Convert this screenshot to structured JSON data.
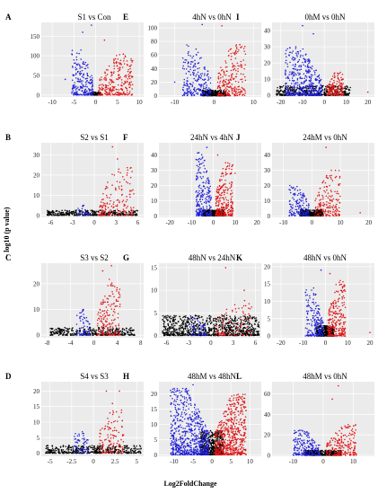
{
  "figure": {
    "ylabel": "- log10 (p value)",
    "xlabel": "Log2FoldChange",
    "colors": {
      "down": "#1f1fd6",
      "up": "#e01515",
      "ns": "#000000",
      "panel_bg": "#ebebeb",
      "grid": "#ffffff"
    }
  },
  "chart_data": [
    {
      "letter": "A",
      "title": "S1 vs Con",
      "type": "scatter",
      "xticks": [
        -10,
        -5,
        0,
        5,
        10
      ],
      "xlim": [
        -12.5,
        11
      ],
      "yticks": [
        0,
        50,
        100,
        150
      ],
      "ylim": [
        -5,
        185
      ],
      "points": {
        "down": {
          "n": 220,
          "xr": [
            -5.5,
            -0.6
          ],
          "ymax": 115
        },
        "up": {
          "n": 260,
          "xr": [
            0.6,
            8.5
          ],
          "ymax": 105
        },
        "ns": {
          "n": 120,
          "xr": [
            -1.2,
            1.2
          ],
          "ymax": 8
        }
      },
      "outliers": [
        {
          "x": -1,
          "y": 178
        },
        {
          "x": -3,
          "y": 160
        },
        {
          "x": 2,
          "y": 140
        },
        {
          "x": -7,
          "y": 40
        },
        {
          "x": 8,
          "y": 25
        }
      ]
    },
    {
      "letter": "B",
      "title": "S2 vs S1",
      "type": "scatter",
      "xticks": [
        -6,
        -3,
        0,
        3,
        6
      ],
      "xlim": [
        -7.3,
        6.8
      ],
      "yticks": [
        0,
        10,
        20,
        30
      ],
      "ylim": [
        -1,
        36
      ],
      "points": {
        "down": {
          "n": 30,
          "xr": [
            -2.5,
            -0.6
          ],
          "ymax": 5
        },
        "up": {
          "n": 160,
          "xr": [
            0.6,
            5.5
          ],
          "ymax": 25
        },
        "ns": {
          "n": 380,
          "xr": [
            -6.5,
            6
          ],
          "ymax": 2.5
        }
      },
      "outliers": [
        {
          "x": 2.5,
          "y": 34
        },
        {
          "x": 3.2,
          "y": 28
        },
        {
          "x": 4.5,
          "y": 20
        }
      ]
    },
    {
      "letter": "C",
      "title": "S3 vs S2",
      "type": "scatter",
      "xticks": [
        -8,
        -4,
        0,
        4,
        8
      ],
      "xlim": [
        -9,
        8.5
      ],
      "yticks": [
        0,
        10,
        20
      ],
      "ylim": [
        -1,
        28
      ],
      "points": {
        "down": {
          "n": 70,
          "xr": [
            -3,
            -0.6
          ],
          "ymax": 10
        },
        "up": {
          "n": 170,
          "xr": [
            0.6,
            4.5
          ],
          "ymax": 22
        },
        "ns": {
          "n": 360,
          "xr": [
            -7.5,
            7
          ],
          "ymax": 3
        }
      },
      "outliers": [
        {
          "x": 3,
          "y": 27
        },
        {
          "x": 1.5,
          "y": 25
        }
      ]
    },
    {
      "letter": "D",
      "title": "S4 vs S3",
      "type": "scatter",
      "xticks": [
        -5.0,
        -2.5,
        0.0,
        2.5,
        5.0
      ],
      "xlim": [
        -6,
        5.8
      ],
      "yticks": [
        0,
        5,
        10,
        15,
        20
      ],
      "ylim": [
        -1,
        23
      ],
      "points": {
        "down": {
          "n": 60,
          "xr": [
            -2.2,
            -0.6
          ],
          "ymax": 7
        },
        "up": {
          "n": 120,
          "xr": [
            0.6,
            3.5
          ],
          "ymax": 14
        },
        "ns": {
          "n": 420,
          "xr": [
            -5.5,
            5.5
          ],
          "ymax": 2.5
        }
      },
      "outliers": [
        {
          "x": 1.5,
          "y": 20
        },
        {
          "x": 3,
          "y": 20
        },
        {
          "x": 2.2,
          "y": 16
        }
      ]
    },
    {
      "letter": "E",
      "title": "4hN vs 0hN",
      "type": "scatter",
      "xticks": [
        -10,
        0,
        10
      ],
      "xlim": [
        -14,
        12
      ],
      "yticks": [
        0,
        20,
        40,
        60,
        80,
        100
      ],
      "ylim": [
        -2,
        108
      ],
      "points": {
        "down": {
          "n": 230,
          "xr": [
            -8,
            -0.8
          ],
          "ymax": 75
        },
        "up": {
          "n": 250,
          "xr": [
            0.8,
            8
          ],
          "ymax": 80
        },
        "ns": {
          "n": 320,
          "xr": [
            -3,
            3
          ],
          "ymax": 8
        }
      },
      "outliers": [
        {
          "x": -3,
          "y": 105
        },
        {
          "x": 2,
          "y": 103
        },
        {
          "x": -10,
          "y": 20
        }
      ]
    },
    {
      "letter": "F",
      "title": "24hN vs 4hN",
      "type": "scatter",
      "xticks": [
        -20,
        -10,
        0,
        10,
        20
      ],
      "xlim": [
        -25,
        22
      ],
      "yticks": [
        0,
        10,
        20,
        30,
        40
      ],
      "ylim": [
        -1,
        48
      ],
      "points": {
        "down": {
          "n": 240,
          "xr": [
            -8,
            -1
          ],
          "ymax": 42
        },
        "up": {
          "n": 280,
          "xr": [
            1,
            9
          ],
          "ymax": 35
        },
        "ns": {
          "n": 400,
          "xr": [
            -5,
            5
          ],
          "ymax": 4
        }
      },
      "outliers": [
        {
          "x": -3,
          "y": 45
        },
        {
          "x": 2,
          "y": 40
        },
        {
          "x": 10,
          "y": 28
        }
      ]
    },
    {
      "letter": "G",
      "title": "48hN vs 24hN",
      "type": "scatter",
      "xticks": [
        -6,
        -3,
        0,
        3,
        6
      ],
      "xlim": [
        -7,
        6.8
      ],
      "yticks": [
        0,
        5,
        10,
        15
      ],
      "ylim": [
        -0.5,
        16
      ],
      "points": {
        "down": {
          "n": 60,
          "xr": [
            -3,
            -0.6
          ],
          "ymax": 4
        },
        "up": {
          "n": 100,
          "xr": [
            0.6,
            5.5
          ],
          "ymax": 8
        },
        "ns": {
          "n": 900,
          "xr": [
            -6.5,
            6.5
          ],
          "ymax": 4.5
        }
      },
      "outliers": [
        {
          "x": 2,
          "y": 15
        },
        {
          "x": 4.5,
          "y": 10
        }
      ]
    },
    {
      "letter": "H",
      "title": "48hM vs 48hN",
      "type": "scatter",
      "xticks": [
        -10,
        -5,
        0,
        5,
        10
      ],
      "xlim": [
        -14,
        13
      ],
      "yticks": [
        0,
        5,
        10,
        15,
        20
      ],
      "ylim": [
        -0.5,
        24
      ],
      "points": {
        "down": {
          "n": 700,
          "xr": [
            -11,
            -0.8
          ],
          "ymax": 22
        },
        "up": {
          "n": 600,
          "xr": [
            0.8,
            9
          ],
          "ymax": 20
        },
        "ns": {
          "n": 500,
          "xr": [
            -3,
            3
          ],
          "ymax": 8
        }
      },
      "outliers": [
        {
          "x": -5,
          "y": 23
        },
        {
          "x": 7,
          "y": 18
        }
      ]
    },
    {
      "letter": "I",
      "title": "0hM vs 0hN",
      "type": "scatter",
      "xticks": [
        -20,
        -10,
        0,
        10,
        20
      ],
      "xlim": [
        -24,
        23
      ],
      "yticks": [
        0,
        10,
        20,
        30,
        40
      ],
      "ylim": [
        -1,
        45
      ],
      "points": {
        "down": {
          "n": 420,
          "xr": [
            -18,
            -1
          ],
          "ymax": 30
        },
        "up": {
          "n": 160,
          "xr": [
            1,
            9
          ],
          "ymax": 15
        },
        "ns": {
          "n": 420,
          "xr": [
            -22,
            12
          ],
          "ymax": 6
        }
      },
      "outliers": [
        {
          "x": -10,
          "y": 43
        },
        {
          "x": -5,
          "y": 38
        },
        {
          "x": 20,
          "y": 2
        }
      ]
    },
    {
      "letter": "J",
      "title": "24hM vs 0hN",
      "type": "scatter",
      "xticks": [
        -10,
        0,
        10,
        20
      ],
      "xlim": [
        -14,
        22
      ],
      "yticks": [
        0,
        10,
        20,
        30,
        40
      ],
      "ylim": [
        -1,
        48
      ],
      "points": {
        "down": {
          "n": 150,
          "xr": [
            -8,
            -1
          ],
          "ymax": 20
        },
        "up": {
          "n": 180,
          "xr": [
            1,
            10
          ],
          "ymax": 30
        },
        "ns": {
          "n": 400,
          "xr": [
            -4,
            4
          ],
          "ymax": 4
        }
      },
      "outliers": [
        {
          "x": 5,
          "y": 45
        },
        {
          "x": 17,
          "y": 2
        }
      ]
    },
    {
      "letter": "K",
      "title": "48hN vs 0hN",
      "type": "scatter",
      "xticks": [
        -20,
        -10,
        0,
        10,
        20
      ],
      "xlim": [
        -24,
        22
      ],
      "yticks": [
        0,
        5,
        10,
        15,
        20
      ],
      "ylim": [
        -0.5,
        21
      ],
      "points": {
        "down": {
          "n": 200,
          "xr": [
            -9,
            -1
          ],
          "ymax": 14
        },
        "up": {
          "n": 260,
          "xr": [
            1,
            9
          ],
          "ymax": 16
        },
        "ns": {
          "n": 400,
          "xr": [
            -4,
            4
          ],
          "ymax": 3
        }
      },
      "outliers": [
        {
          "x": -2,
          "y": 19
        },
        {
          "x": 2,
          "y": 18
        },
        {
          "x": 20,
          "y": 1
        }
      ]
    },
    {
      "letter": "L",
      "title": "48hM vs 0hN",
      "type": "scatter",
      "xticks": [
        -10,
        0,
        10
      ],
      "xlim": [
        -17,
        17
      ],
      "yticks": [
        0,
        20,
        40,
        60
      ],
      "ylim": [
        -1,
        72
      ],
      "points": {
        "down": {
          "n": 200,
          "xr": [
            -10,
            -1
          ],
          "ymax": 25
        },
        "up": {
          "n": 220,
          "xr": [
            1,
            11
          ],
          "ymax": 30
        },
        "ns": {
          "n": 420,
          "xr": [
            -6,
            6
          ],
          "ymax": 5
        }
      },
      "outliers": [
        {
          "x": 5,
          "y": 68
        },
        {
          "x": 3,
          "y": 55
        }
      ]
    }
  ]
}
